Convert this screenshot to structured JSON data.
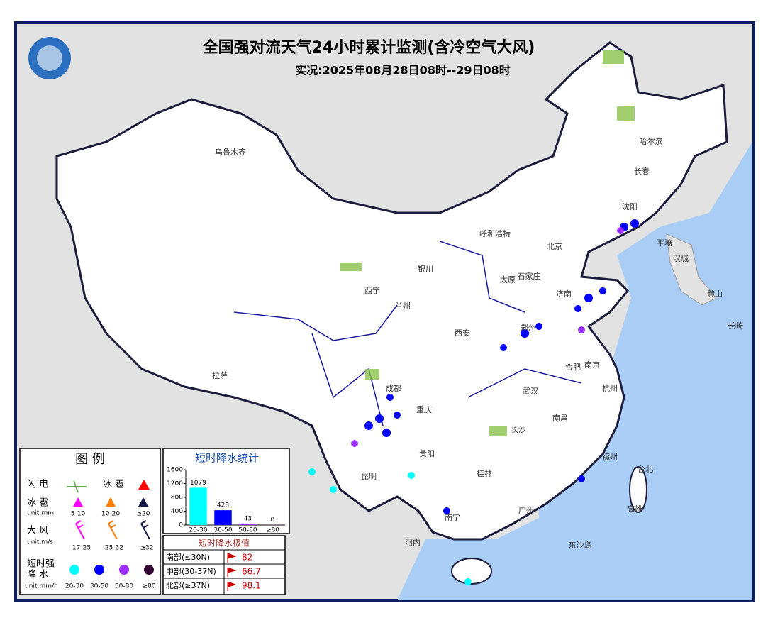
{
  "header": {
    "title": "全国强对流天气24小时累计监测(含冷空气大风)",
    "subtitle": "实况:2025年08月28日08时--29日08时"
  },
  "cities": [
    "乌鲁木齐",
    "哈尔滨",
    "长春",
    "沈阳",
    "呼和浩特",
    "北京",
    "银川",
    "太原",
    "石家庄",
    "西宁",
    "兰州",
    "济南",
    "郑州",
    "西安",
    "合肥",
    "南京",
    "拉萨",
    "成都",
    "武汉",
    "重庆",
    "长沙",
    "南昌",
    "杭州",
    "福州",
    "贵阳",
    "昆明",
    "桂林",
    "南宁",
    "广州",
    "台北",
    "高雄",
    "河内",
    "东沙岛",
    "平壤",
    "汉城",
    "釜山",
    "长崎"
  ],
  "legend": {
    "title": "图 例",
    "lightning": "闪 电",
    "hail_mark": "冰 雹",
    "hail": {
      "label": "冰 雹",
      "unit": "unit:mm",
      "items": [
        "5-10",
        "10-20",
        "≥20"
      ]
    },
    "wind": {
      "label": "大 风",
      "unit": "unit:m/s",
      "items": [
        "17-25",
        "25-32",
        "≥32"
      ]
    },
    "rain": {
      "label": [
        "短时强",
        "降  水"
      ],
      "unit": "unit:mm/h",
      "items": [
        "20-30",
        "30-50",
        "50-80",
        "≥80"
      ]
    }
  },
  "chart_data": {
    "type": "bar",
    "title": "短时降水统计",
    "categories": [
      "20-30",
      "30-50",
      "50-80",
      "≥80"
    ],
    "values": [
      1079,
      428,
      43,
      8
    ],
    "colors": [
      "#00ffff",
      "#0000ff",
      "#9b30ff",
      "#330033"
    ],
    "ylim": [
      0,
      1600
    ],
    "yticks": [
      0,
      400,
      800,
      1200,
      1600
    ]
  },
  "extremes": {
    "title": "短时降水极值",
    "rows": [
      {
        "region": "南部(≤30N)",
        "value": 82
      },
      {
        "region": "中部(30-37N)",
        "value": 66.7
      },
      {
        "region": "北部(≥37N)",
        "value": 98.1
      }
    ]
  }
}
